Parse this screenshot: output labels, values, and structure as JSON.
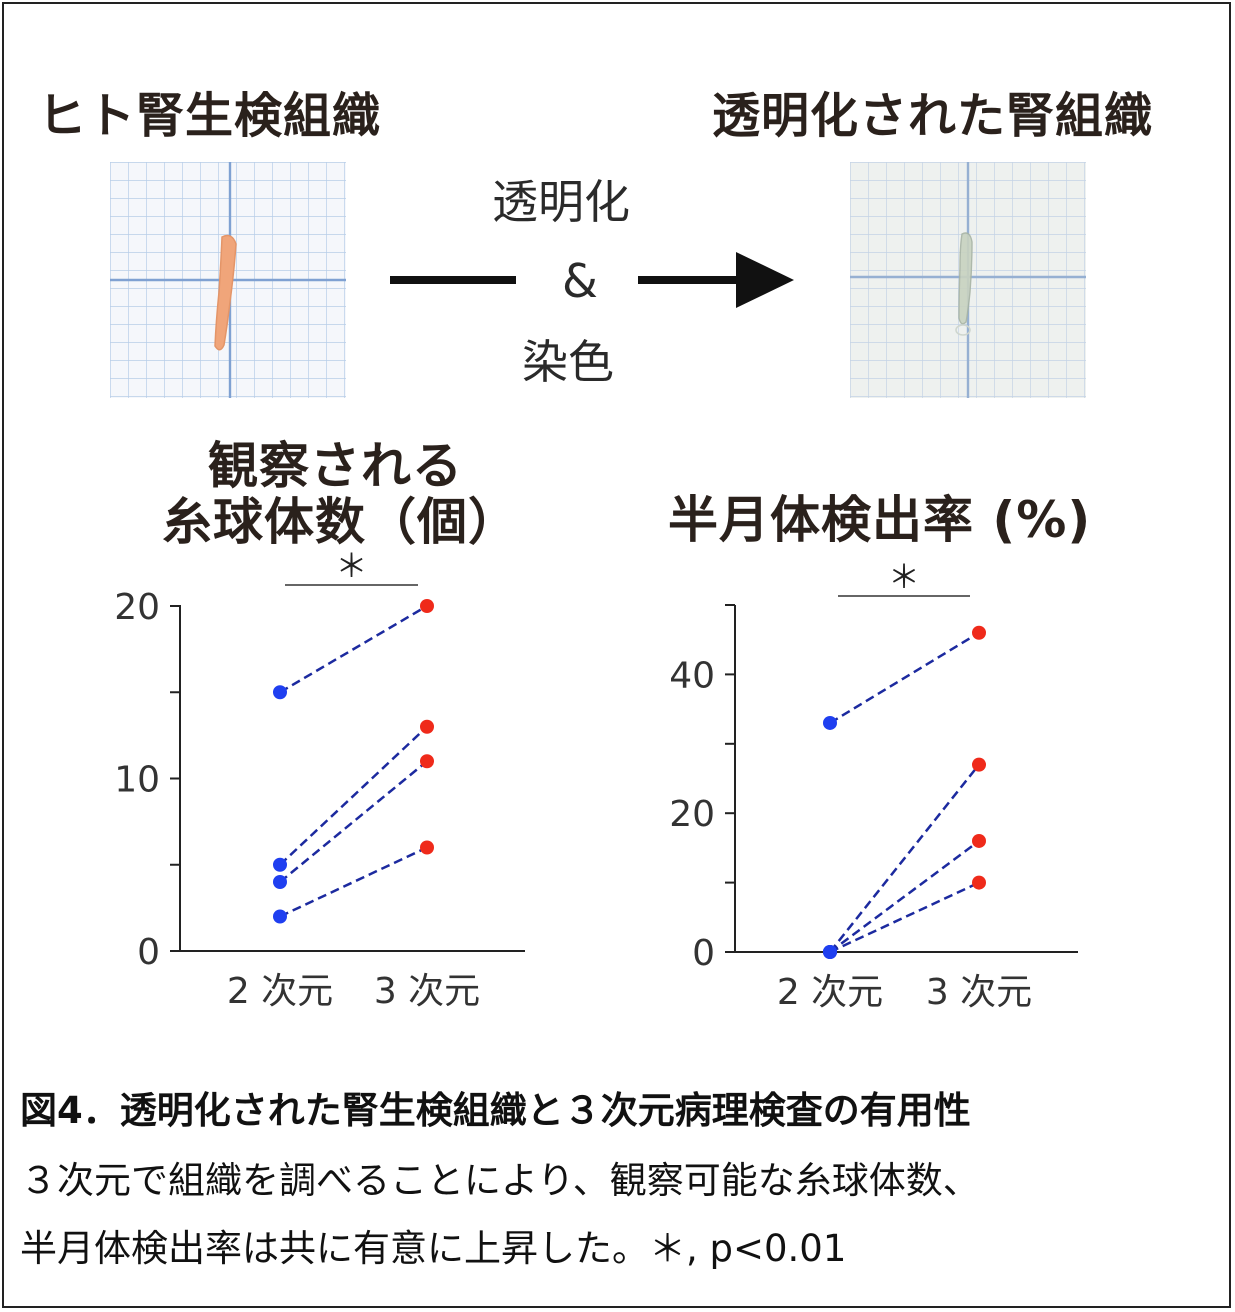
{
  "top": {
    "left_title": "ヒト腎生検組織",
    "right_title": "透明化された腎組織",
    "process_line1": "透明化",
    "process_line2": "&",
    "process_line3": "染色"
  },
  "colors": {
    "series_2d": "#1f3ff0",
    "series_3d": "#ef2a1a",
    "connector": "#1c2a9f",
    "grid_paper": "#b8cde8",
    "grid_paper_major": "#7fa1d2",
    "tissue_raw": "#f0a57a",
    "tissue_clear": "#c8d2c0"
  },
  "chart_data": [
    {
      "type": "scatter",
      "title_line1": "観察される",
      "title_line2": "糸球体数（個）",
      "categories": [
        "2 次元",
        "3 次元"
      ],
      "ylim": [
        0,
        20
      ],
      "yticks": [
        "0",
        "10",
        "20"
      ],
      "significance": "＊",
      "pairs": [
        {
          "2d": 15,
          "3d": 20
        },
        {
          "2d": 5,
          "3d": 13
        },
        {
          "2d": 4,
          "3d": 11
        },
        {
          "2d": 2,
          "3d": 6
        }
      ]
    },
    {
      "type": "scatter",
      "title_line1": "半月体検出率 (%)",
      "categories": [
        "2 次元",
        "3 次元"
      ],
      "ylim": [
        0,
        50
      ],
      "yticks": [
        "0",
        "20",
        "40"
      ],
      "significance": "＊",
      "pairs": [
        {
          "2d": 33,
          "3d": 46
        },
        {
          "2d": 0,
          "3d": 27
        },
        {
          "2d": 0,
          "3d": 16
        },
        {
          "2d": 0,
          "3d": 10
        }
      ]
    }
  ],
  "caption": {
    "title": "図4．透明化された腎生検組織と３次元病理検査の有用性",
    "line1": "３次元で組織を調べることにより、観察可能な糸球体数、",
    "line2": "半月体検出率は共に有意に上昇した。＊, p<0.01"
  }
}
